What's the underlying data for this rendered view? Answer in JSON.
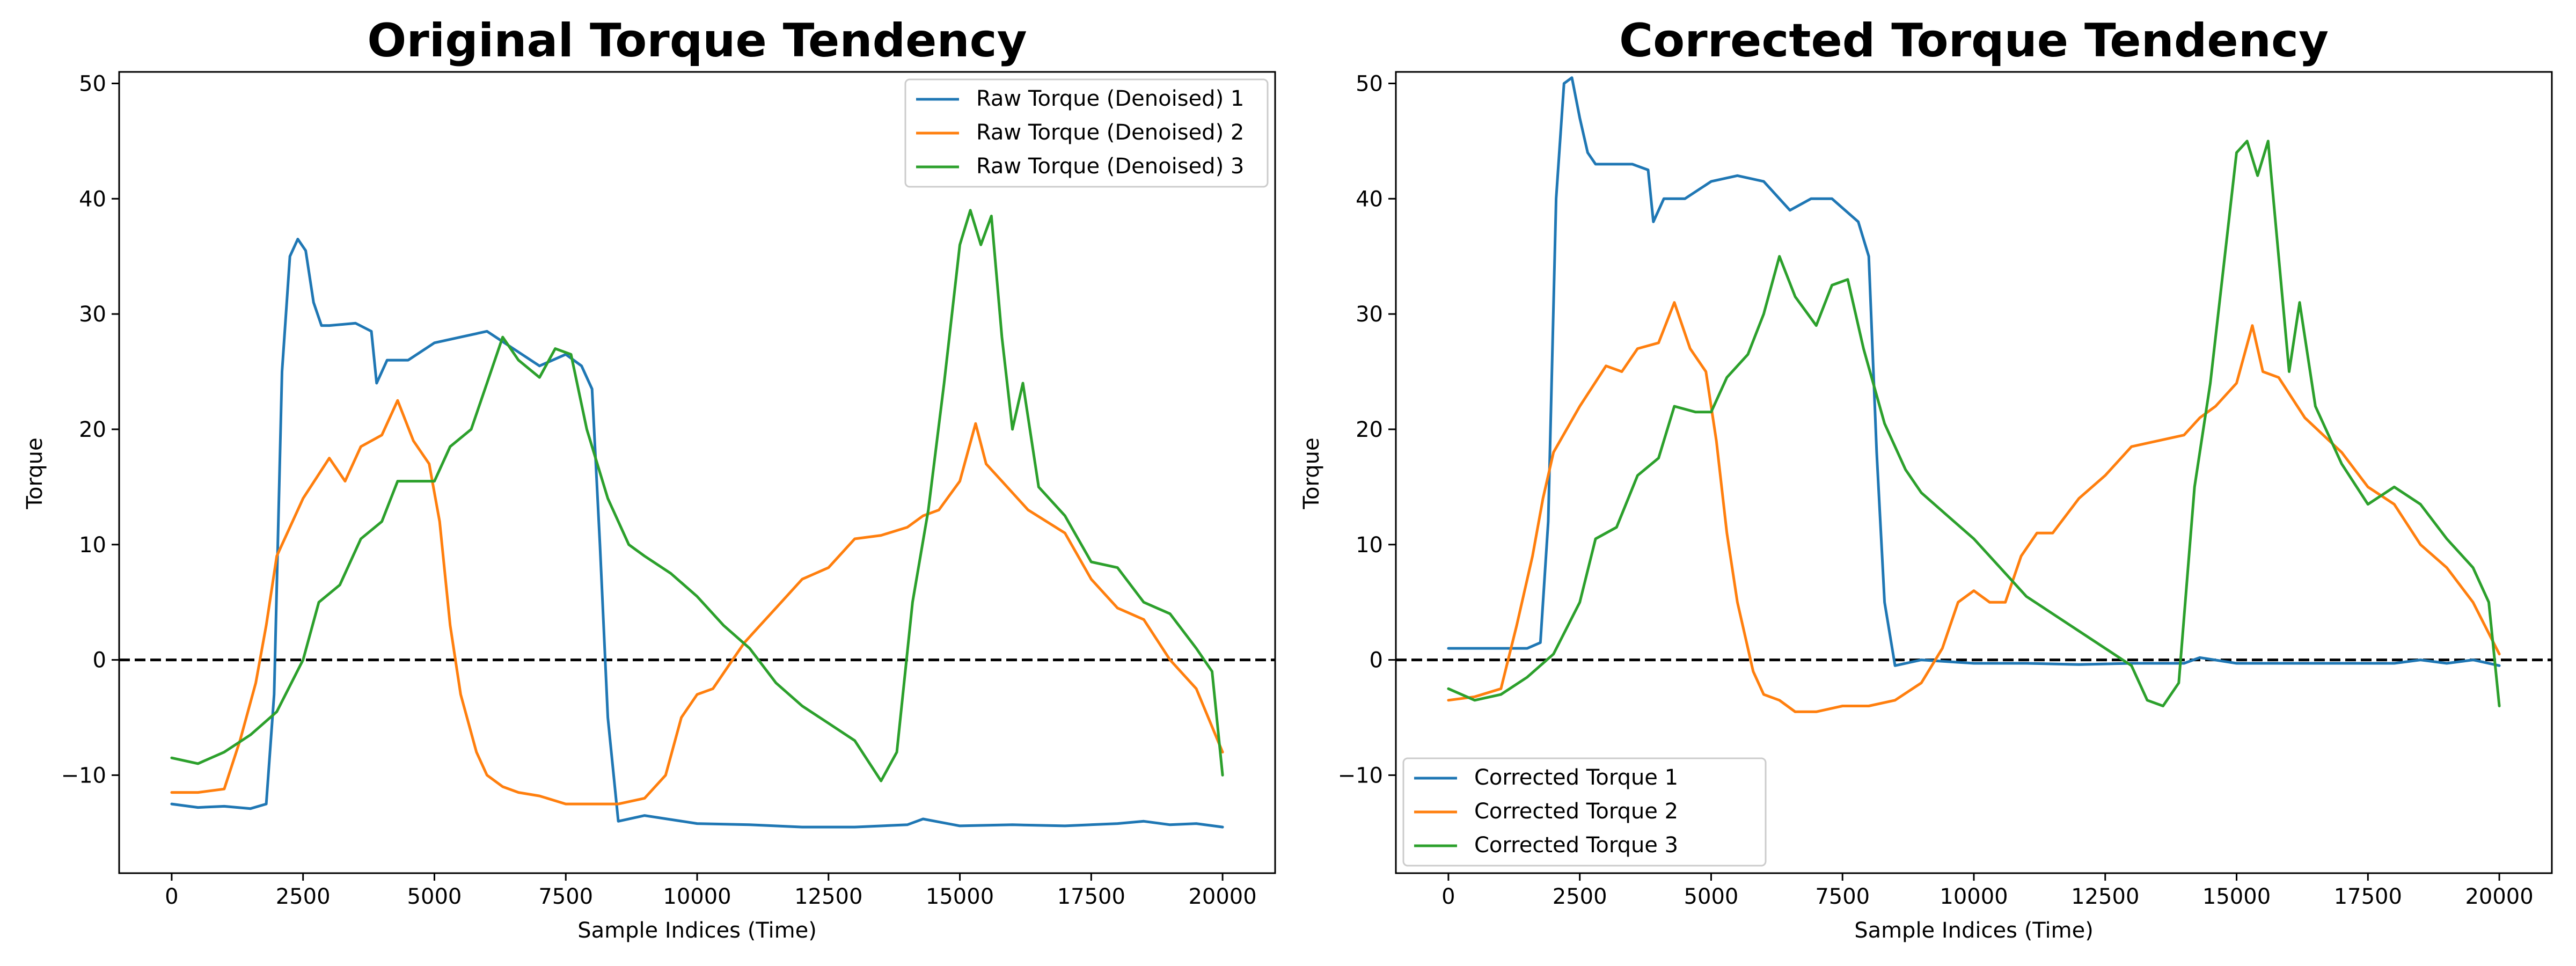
{
  "chart_data": [
    {
      "type": "line",
      "title": "Original Torque Tendency",
      "xlabel": "Sample Indices (Time)",
      "ylabel": "Torque",
      "xlim": [
        -1000,
        21000
      ],
      "ylim": [
        -18.5,
        51
      ],
      "xticks": [
        0,
        2500,
        5000,
        7500,
        10000,
        12500,
        15000,
        17500,
        20000
      ],
      "yticks": [
        -10,
        0,
        10,
        20,
        30,
        40,
        50
      ],
      "xtick_labels": [
        "0",
        "2500",
        "5000",
        "7500",
        "10000",
        "12500",
        "15000",
        "17500",
        "20000"
      ],
      "ytick_labels": [
        "−10",
        "0",
        "10",
        "20",
        "30",
        "40",
        "50"
      ],
      "reference_line": 0,
      "legend_position": "upper right",
      "grid": false,
      "series": [
        {
          "name": "Raw Torque (Denoised) 1",
          "color": "#1f77b4",
          "x": [
            0,
            500,
            1000,
            1500,
            1800,
            1950,
            2100,
            2250,
            2400,
            2550,
            2700,
            2850,
            3000,
            3500,
            3800,
            3900,
            4100,
            4500,
            5000,
            5500,
            6000,
            6500,
            7000,
            7500,
            7800,
            8000,
            8150,
            8300,
            8500,
            9000,
            10000,
            11000,
            12000,
            13000,
            14000,
            14300,
            15000,
            16000,
            17000,
            18000,
            18500,
            19000,
            19500,
            20000
          ],
          "y": [
            -12.5,
            -12.8,
            -12.7,
            -12.9,
            -12.5,
            -3,
            25,
            35,
            36.5,
            35.5,
            31,
            29,
            29,
            29.2,
            28.5,
            24,
            26,
            26,
            27.5,
            28,
            28.5,
            27,
            25.5,
            26.5,
            25.5,
            23.5,
            10,
            -5,
            -14,
            -13.5,
            -14.2,
            -14.3,
            -14.5,
            -14.5,
            -14.3,
            -13.8,
            -14.4,
            -14.3,
            -14.4,
            -14.2,
            -14,
            -14.3,
            -14.2,
            -14.5
          ]
        },
        {
          "name": "Raw Torque (Denoised) 2",
          "color": "#ff7f0e",
          "x": [
            0,
            500,
            1000,
            1300,
            1600,
            1800,
            2000,
            2500,
            3000,
            3300,
            3600,
            4000,
            4300,
            4600,
            4900,
            5100,
            5300,
            5500,
            5800,
            6000,
            6300,
            6600,
            7000,
            7500,
            8000,
            8500,
            9000,
            9400,
            9700,
            10000,
            10300,
            10600,
            10900,
            11200,
            11500,
            12000,
            12500,
            13000,
            13500,
            14000,
            14300,
            14600,
            15000,
            15300,
            15500,
            15800,
            16300,
            17000,
            17500,
            18000,
            18500,
            19000,
            19500,
            20000
          ],
          "y": [
            -11.5,
            -11.5,
            -11.2,
            -7,
            -2,
            3,
            9,
            14,
            17.5,
            15.5,
            18.5,
            19.5,
            22.5,
            19,
            17,
            12,
            3,
            -3,
            -8,
            -10,
            -11,
            -11.5,
            -11.8,
            -12.5,
            -12.5,
            -12.5,
            -12,
            -10,
            -5,
            -3,
            -2.5,
            -0.5,
            1.5,
            3,
            4.5,
            7,
            8,
            10.5,
            10.8,
            11.5,
            12.5,
            13,
            15.5,
            20.5,
            17,
            15.5,
            13,
            11,
            7,
            4.5,
            3.5,
            0,
            -2.5,
            -8
          ]
        },
        {
          "name": "Raw Torque (Denoised) 3",
          "color": "#2ca02c",
          "x": [
            0,
            500,
            1000,
            1500,
            2000,
            2500,
            2800,
            3200,
            3600,
            4000,
            4300,
            4700,
            5000,
            5300,
            5700,
            6000,
            6300,
            6600,
            7000,
            7300,
            7600,
            7900,
            8300,
            8700,
            9000,
            9500,
            10000,
            10500,
            11000,
            11500,
            12000,
            12500,
            13000,
            13500,
            13800,
            14100,
            14400,
            14700,
            15000,
            15200,
            15400,
            15600,
            15800,
            16000,
            16200,
            16500,
            17000,
            17500,
            18000,
            18500,
            19000,
            19500,
            19800,
            20000
          ],
          "y": [
            -8.5,
            -9,
            -8,
            -6.5,
            -4.5,
            0,
            5,
            6.5,
            10.5,
            12,
            15.5,
            15.5,
            15.5,
            18.5,
            20,
            24,
            28,
            26,
            24.5,
            27,
            26.5,
            20,
            14,
            10,
            9,
            7.5,
            5.5,
            3,
            1,
            -2,
            -4,
            -5.5,
            -7,
            -10.5,
            -8,
            5,
            13,
            24,
            36,
            39,
            36,
            38.5,
            28,
            20,
            24,
            15,
            12.5,
            8.5,
            8,
            5,
            4,
            1,
            -1,
            -10
          ]
        }
      ]
    },
    {
      "type": "line",
      "title": "Corrected Torque Tendency",
      "xlabel": "Sample Indices (Time)",
      "ylabel": "Torque",
      "xlim": [
        -1000,
        21000
      ],
      "ylim": [
        -18.5,
        51
      ],
      "xticks": [
        0,
        2500,
        5000,
        7500,
        10000,
        12500,
        15000,
        17500,
        20000
      ],
      "yticks": [
        -10,
        0,
        10,
        20,
        30,
        40,
        50
      ],
      "xtick_labels": [
        "0",
        "2500",
        "5000",
        "7500",
        "10000",
        "12500",
        "15000",
        "17500",
        "20000"
      ],
      "ytick_labels": [
        "−10",
        "0",
        "10",
        "20",
        "30",
        "40",
        "50"
      ],
      "reference_line": 0,
      "legend_position": "lower left",
      "grid": false,
      "series": [
        {
          "name": "Corrected Torque 1",
          "color": "#1f77b4",
          "x": [
            0,
            500,
            1000,
            1500,
            1750,
            1900,
            2050,
            2200,
            2350,
            2500,
            2650,
            2800,
            3000,
            3500,
            3800,
            3900,
            4100,
            4500,
            5000,
            5500,
            6000,
            6500,
            6900,
            7300,
            7800,
            8000,
            8150,
            8300,
            8500,
            9000,
            10000,
            11000,
            12000,
            13000,
            14000,
            14300,
            15000,
            16000,
            17000,
            18000,
            18500,
            19000,
            19500,
            20000
          ],
          "y": [
            1,
            1,
            1,
            1,
            1.5,
            12,
            40,
            50,
            50.5,
            47,
            44,
            43,
            43,
            43,
            42.5,
            38,
            40,
            40,
            41.5,
            42,
            41.5,
            39,
            40,
            40,
            38,
            35,
            18,
            5,
            -0.5,
            0,
            -0.3,
            -0.3,
            -0.4,
            -0.3,
            -0.3,
            0.2,
            -0.3,
            -0.3,
            -0.3,
            -0.3,
            0,
            -0.3,
            0,
            -0.5
          ]
        },
        {
          "name": "Corrected Torque 2",
          "color": "#ff7f0e",
          "x": [
            0,
            500,
            1000,
            1300,
            1600,
            1800,
            2000,
            2500,
            3000,
            3300,
            3600,
            4000,
            4300,
            4600,
            4900,
            5100,
            5300,
            5500,
            5800,
            6000,
            6300,
            6600,
            7000,
            7500,
            8000,
            8500,
            9000,
            9400,
            9700,
            10000,
            10300,
            10600,
            10900,
            11200,
            11500,
            12000,
            12500,
            13000,
            13500,
            14000,
            14300,
            14600,
            15000,
            15300,
            15500,
            15800,
            16300,
            17000,
            17500,
            18000,
            18500,
            19000,
            19500,
            20000
          ],
          "y": [
            -3.5,
            -3.2,
            -2.5,
            3,
            9,
            14,
            18,
            22,
            25.5,
            25,
            27,
            27.5,
            31,
            27,
            25,
            19,
            11,
            5,
            -1,
            -3,
            -3.5,
            -4.5,
            -4.5,
            -4,
            -4,
            -3.5,
            -2,
            1,
            5,
            6,
            5,
            5,
            9,
            11,
            11,
            14,
            16,
            18.5,
            19,
            19.5,
            21,
            22,
            24,
            29,
            25,
            24.5,
            21,
            18,
            15,
            13.5,
            10,
            8,
            5,
            0.5
          ]
        },
        {
          "name": "Corrected Torque 3",
          "color": "#2ca02c",
          "x": [
            0,
            500,
            1000,
            1500,
            2000,
            2500,
            2800,
            3200,
            3600,
            4000,
            4300,
            4700,
            5000,
            5300,
            5700,
            6000,
            6300,
            6600,
            7000,
            7300,
            7600,
            7900,
            8300,
            8700,
            9000,
            9500,
            10000,
            10500,
            11000,
            11500,
            12000,
            12500,
            13000,
            13300,
            13600,
            13900,
            14200,
            14500,
            14800,
            15000,
            15200,
            15400,
            15600,
            15800,
            16000,
            16200,
            16500,
            17000,
            17500,
            18000,
            18500,
            19000,
            19500,
            19800,
            20000
          ],
          "y": [
            -2.5,
            -3.5,
            -3,
            -1.5,
            0.5,
            5,
            10.5,
            11.5,
            16,
            17.5,
            22,
            21.5,
            21.5,
            24.5,
            26.5,
            30,
            35,
            31.5,
            29,
            32.5,
            33,
            27,
            20.5,
            16.5,
            14.5,
            12.5,
            10.5,
            8,
            5.5,
            4,
            2.5,
            1,
            -0.5,
            -3.5,
            -4,
            -2,
            15,
            24,
            36,
            44,
            45,
            42,
            45,
            35,
            25,
            31,
            22,
            17,
            13.5,
            15,
            13.5,
            10.5,
            8,
            5,
            -4
          ]
        }
      ]
    }
  ]
}
